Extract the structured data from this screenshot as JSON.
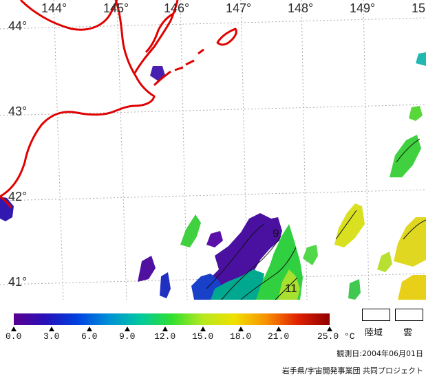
{
  "map": {
    "lon_labels": [
      "144°",
      "145°",
      "146°",
      "147°",
      "148°",
      "149°",
      "15"
    ],
    "lat_labels": [
      "44°",
      "43°",
      "42°",
      "41°"
    ],
    "contour_labels": [
      "9",
      "11"
    ]
  },
  "legend": {
    "colorbar_colors": [
      "#5a0090",
      "#2810b8",
      "#0040e0",
      "#0090d8",
      "#00c8a0",
      "#30e030",
      "#b8e820",
      "#f0e000",
      "#f89000",
      "#e02000",
      "#900000"
    ],
    "ticks": [
      "0.0",
      "3.0",
      "6.0",
      "9.0",
      "12.0",
      "15.0",
      "18.0",
      "21.0",
      "25.0"
    ],
    "unit": "°C",
    "land_label": "陸域",
    "cloud_label": "雲"
  },
  "footer": {
    "obs_date": "観測日:2004年06月01日",
    "credit": "岩手県/宇宙開発事業団 共同プロジェクト"
  },
  "colors": {
    "coastline": "#e00000",
    "grid": "#aaaaaa",
    "background": "#ffffff"
  }
}
